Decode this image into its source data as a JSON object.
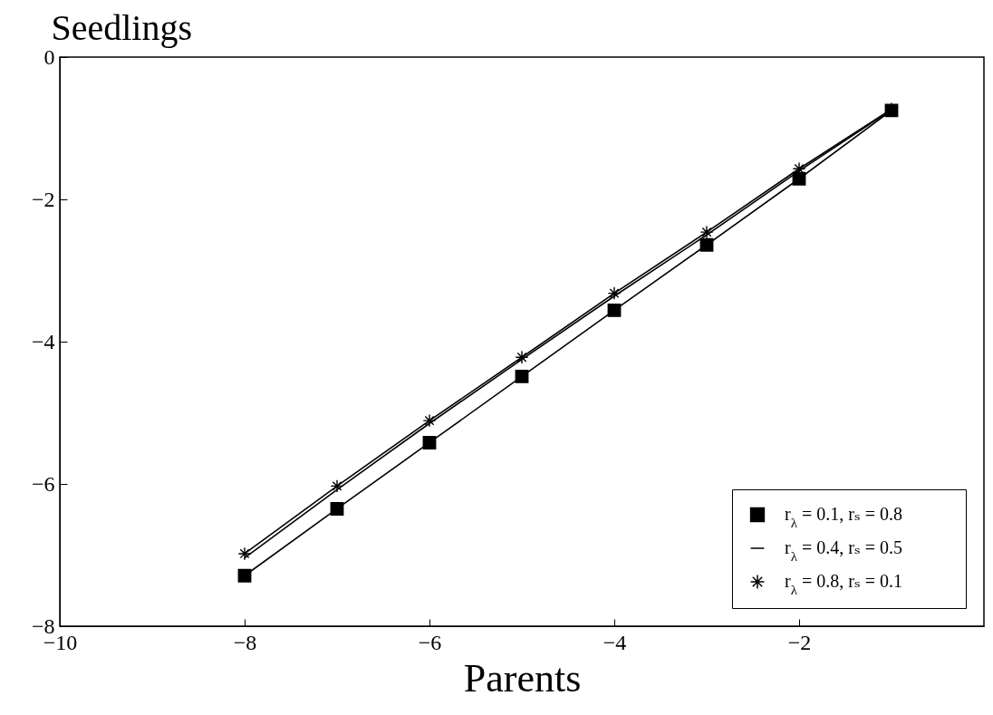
{
  "chart_data": {
    "type": "line",
    "xlabel": "Parents",
    "ylabel": "Seedlings",
    "xlim": [
      -10,
      0
    ],
    "ylim": [
      -8,
      0
    ],
    "xticks": [
      -10,
      -8,
      -6,
      -4,
      -2
    ],
    "yticks": [
      -8,
      -6,
      -4,
      -2,
      0
    ],
    "x": [
      -8,
      -7,
      -6,
      -5,
      -4,
      -3,
      -2,
      -1
    ],
    "series": [
      {
        "name": "r$_{λ}$ = 0.1, rₛ = 0.8",
        "color": "#000000",
        "marker": "square",
        "values": [
          -7.29,
          -6.35,
          -5.42,
          -4.49,
          -3.56,
          -2.64,
          -1.71,
          -0.75
        ]
      },
      {
        "name": "r$_{λ}$ = 0.4, rₛ = 0.5",
        "color": "#000000",
        "marker": "none",
        "values": [
          -7.04,
          -6.08,
          -5.15,
          -4.25,
          -3.36,
          -2.5,
          -1.6,
          -0.74
        ]
      },
      {
        "name": "r$_{λ}$ = 0.8, rₛ = 0.1",
        "color": "#000000",
        "marker": "cross",
        "values": [
          -6.98,
          -6.03,
          -5.11,
          -4.22,
          -3.32,
          -2.46,
          -1.57,
          -0.73
        ]
      }
    ],
    "legend": "bottom right",
    "grid": false,
    "line_style": "solid"
  }
}
